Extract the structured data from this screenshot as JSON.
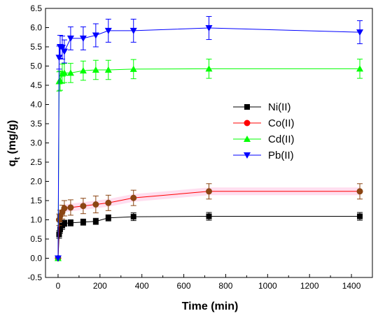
{
  "chart_data": {
    "type": "line",
    "xlabel": "Time (min)",
    "ylabel": "q",
    "ylabel_subscript": "t",
    "ylabel_unit": " (mg/g)",
    "xlim": [
      -60,
      1500
    ],
    "ylim": [
      -0.5,
      6.5
    ],
    "xticks": [
      0,
      200,
      400,
      600,
      800,
      1000,
      1200,
      1400
    ],
    "yticks": [
      -0.5,
      0.0,
      0.5,
      1.0,
      1.5,
      2.0,
      2.5,
      3.0,
      3.5,
      4.0,
      4.5,
      5.0,
      5.5,
      6.0,
      6.5
    ],
    "ytick_labels": [
      "-0.5",
      "0.0",
      "0.5",
      "1.0",
      "1.5",
      "2.0",
      "2.5",
      "3.0",
      "3.5",
      "4.0",
      "4.5",
      "5.0",
      "5.5",
      "6.0",
      "6.5"
    ],
    "grid": false,
    "legend_position": "center-right",
    "series": [
      {
        "name": "Ni(II)",
        "color": "#000000",
        "marker": "square",
        "x": [
          0,
          5,
          10,
          20,
          30,
          60,
          120,
          180,
          240,
          360,
          720,
          1440
        ],
        "y": [
          0.0,
          0.62,
          0.75,
          0.85,
          0.91,
          0.92,
          0.94,
          0.96,
          1.05,
          1.08,
          1.09,
          1.09
        ],
        "error": [
          0,
          0.1,
          0.1,
          0.1,
          0.08,
          0.08,
          0.08,
          0.08,
          0.08,
          0.1,
          0.1,
          0.1
        ]
      },
      {
        "name": "Co(II)",
        "color": "#ff0000",
        "marker_fill": "#8B4513",
        "marker": "circle",
        "band": true,
        "x": [
          0,
          5,
          10,
          20,
          30,
          60,
          120,
          180,
          240,
          360,
          720,
          1440
        ],
        "y": [
          0.0,
          1.0,
          1.1,
          1.2,
          1.3,
          1.32,
          1.36,
          1.4,
          1.44,
          1.57,
          1.74,
          1.74
        ],
        "error": [
          0,
          0.15,
          0.15,
          0.18,
          0.2,
          0.2,
          0.2,
          0.22,
          0.2,
          0.2,
          0.2,
          0.2
        ]
      },
      {
        "name": "Cd(II)",
        "color": "#00ff00",
        "marker": "triangle-up",
        "x": [
          0,
          5,
          10,
          20,
          30,
          60,
          120,
          180,
          240,
          360,
          720,
          1440
        ],
        "y": [
          0.0,
          4.6,
          4.62,
          4.8,
          4.82,
          4.82,
          4.88,
          4.9,
          4.9,
          4.92,
          4.93,
          4.93
        ],
        "error": [
          0,
          0.25,
          0.25,
          0.25,
          0.25,
          0.25,
          0.25,
          0.25,
          0.25,
          0.25,
          0.25,
          0.25
        ]
      },
      {
        "name": "Pb(II)",
        "color": "#0000ff",
        "marker": "triangle-down",
        "x": [
          0,
          5,
          10,
          20,
          30,
          60,
          120,
          180,
          240,
          360,
          720,
          1440
        ],
        "y": [
          0.0,
          5.22,
          5.5,
          5.48,
          5.38,
          5.72,
          5.72,
          5.8,
          5.92,
          5.92,
          5.99,
          5.88
        ],
        "error": [
          0,
          0.3,
          0.3,
          0.3,
          0.3,
          0.3,
          0.3,
          0.3,
          0.3,
          0.3,
          0.3,
          0.3
        ]
      }
    ]
  }
}
